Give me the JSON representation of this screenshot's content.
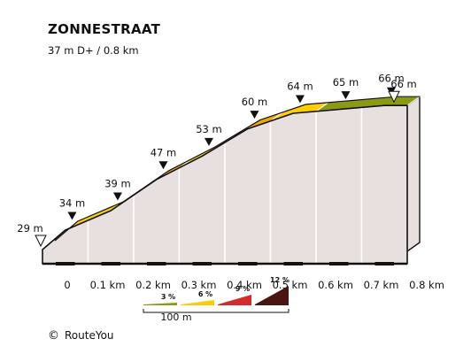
{
  "header": {
    "title": "ZONNESTRAAT",
    "subtitle": "37 m D+ / 0.8 km"
  },
  "chart_data": {
    "type": "area",
    "title": "ZONNESTRAAT",
    "subtitle": "37 m D+ / 0.8 km",
    "xlabel": "",
    "ylabel": "",
    "x_unit": "km",
    "y_unit": "m",
    "x": [
      0,
      0.1,
      0.2,
      0.3,
      0.4,
      0.5,
      0.6,
      0.7,
      0.8
    ],
    "x_tick_labels": [
      "0",
      "0.1 km",
      "0.2 km",
      "0.3 km",
      "0.4 km",
      "0.5 km",
      "0.6 km",
      "0.7 km",
      "0.8 km"
    ],
    "points": [
      {
        "x": 0.0,
        "elevation": 29,
        "label": "29 m",
        "marker": "start"
      },
      {
        "x": 0.05,
        "elevation": 34,
        "label": "34 m",
        "marker": "arrow"
      },
      {
        "x": 0.15,
        "elevation": 39,
        "label": "39 m",
        "marker": "arrow"
      },
      {
        "x": 0.25,
        "elevation": 47,
        "label": "47 m",
        "marker": "arrow"
      },
      {
        "x": 0.35,
        "elevation": 53,
        "label": "53 m",
        "marker": "arrow"
      },
      {
        "x": 0.45,
        "elevation": 60,
        "label": "60 m",
        "marker": "arrow"
      },
      {
        "x": 0.55,
        "elevation": 64,
        "label": "64 m",
        "marker": "arrow"
      },
      {
        "x": 0.65,
        "elevation": 65,
        "label": "65 m",
        "marker": "arrow"
      },
      {
        "x": 0.75,
        "elevation": 66,
        "label": "66 m",
        "marker": "arrow"
      },
      {
        "x": 0.8,
        "elevation": 66,
        "label": "66 m",
        "marker": "end"
      }
    ],
    "segments": [
      {
        "from": 0.0,
        "to": 0.2,
        "color": "#ffcc00"
      },
      {
        "from": 0.2,
        "to": 0.3,
        "color": "#f0a500"
      },
      {
        "from": 0.3,
        "to": 0.4,
        "color": "#ffcc00"
      },
      {
        "from": 0.4,
        "to": 0.5,
        "color": "#f0a500"
      },
      {
        "from": 0.5,
        "to": 0.6,
        "color": "#ffcc00"
      },
      {
        "from": 0.6,
        "to": 0.8,
        "color": "#8a9a12"
      }
    ],
    "legend": {
      "placement": "bottom",
      "items": [
        {
          "label": "3 %",
          "color": "#8a9a12"
        },
        {
          "label": "6 %",
          "color": "#ffcc00"
        },
        {
          "label": "9 %",
          "color": "#d42b2b"
        },
        {
          "label": "12 %",
          "color": "#4a1410"
        }
      ],
      "scale_label": "100 m"
    }
  },
  "footer": {
    "copyright_symbol": "©",
    "credit": "RouteYou"
  }
}
